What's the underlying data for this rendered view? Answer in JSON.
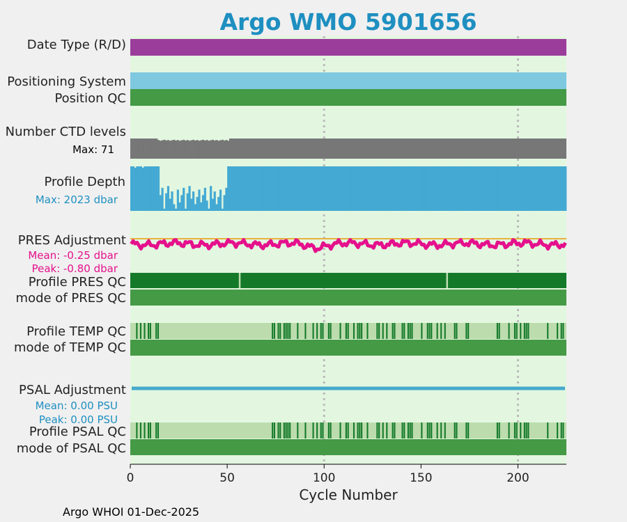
{
  "title": "Argo WMO 5901656",
  "footer": "Argo WHOI 01-Dec-2025",
  "colors": {
    "background": "#f0f0f0",
    "panel": "#e3f7e0",
    "date_type": "#9b3d9b",
    "positioning": "#7ec8e0",
    "qc_green": "#459a45",
    "qc_dark": "#147a2a",
    "qc_light": "#bcdcad",
    "ctd_gray": "#777777",
    "depth_blue": "#44a9d3",
    "pres_pink": "#e5108c",
    "pres_zero": "#e8b040",
    "psal_blue": "#45a9cc",
    "grid_gray": "#bbbbbb",
    "title_blue": "#1e8fc0"
  },
  "labels": {
    "date_type": "Date Type (R/D)",
    "positioning": "Positioning System",
    "position_qc": "Position QC",
    "ctd_levels": "Number CTD levels",
    "ctd_max": "Max: 71",
    "profile_depth": "Profile Depth",
    "depth_max": "Max: 2023 dbar",
    "pres_adjustment": "PRES Adjustment",
    "pres_mean": "Mean: -0.25 dbar",
    "pres_peak": "Peak: -0.80 dbar",
    "profile_pres_qc": "Profile PRES QC",
    "mode_pres_qc": "mode of PRES QC",
    "profile_temp_qc": "Profile TEMP QC",
    "mode_temp_qc": "mode of TEMP QC",
    "psal_adjustment": "PSAL Adjustment",
    "psal_mean": "Mean: 0.00 PSU",
    "psal_peak": "Peak: 0.00 PSU",
    "profile_psal_qc": "Profile PSAL QC",
    "mode_psal_qc": "mode of PSAL QC"
  },
  "chart_data": {
    "type": "bar",
    "xlabel": "Cycle Number",
    "xlim": [
      0,
      225
    ],
    "xticks": [
      0,
      50,
      100,
      150,
      200
    ],
    "gridlines_x": [
      100,
      200
    ],
    "n_cycles": 225,
    "ctd_levels_max": 71,
    "ctd_levels_partial_cycles": [
      14,
      50
    ],
    "ctd_levels_partial_fraction": 0.89,
    "profile_depth_max_dbar": 2023,
    "profile_depth_shallow_cycles": [
      15,
      32,
      49
    ],
    "pres_adjustment": {
      "mean_dbar": -0.25,
      "peak_dbar": -0.8,
      "zero_line": 0,
      "ylim": [
        -1.0,
        0.0
      ]
    },
    "pres_qc_gap_cycles": [
      56,
      163
    ],
    "temp_qc_flag_cycles": [
      3,
      5,
      7,
      9,
      10,
      13,
      14,
      73,
      74,
      76,
      77,
      79,
      80,
      81,
      82,
      86,
      90,
      94,
      96,
      98,
      99,
      102,
      103,
      108,
      111,
      112,
      115,
      117,
      118,
      119,
      122,
      127,
      128,
      130,
      132,
      135,
      136,
      140,
      141,
      143,
      144,
      145,
      150,
      153,
      154,
      155,
      158,
      160,
      162,
      167,
      168,
      173,
      174,
      189,
      190,
      195,
      198,
      199,
      201,
      203,
      204,
      205,
      215,
      220,
      222,
      223
    ],
    "psal_adjustment": {
      "mean_psu": 0.0,
      "peak_psu": 0.0
    }
  }
}
